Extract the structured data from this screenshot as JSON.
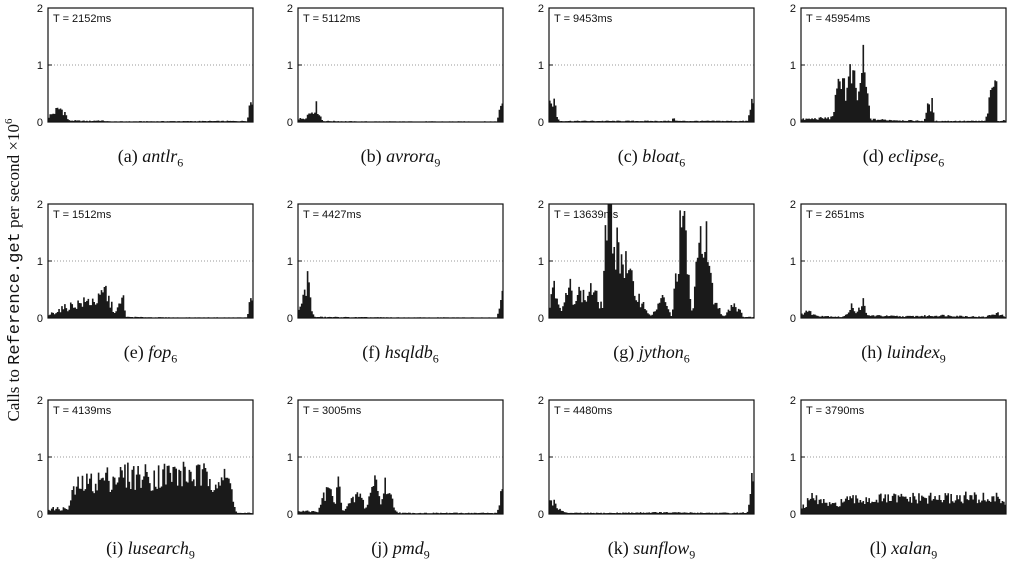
{
  "ylabel": {
    "prefix": "Calls to ",
    "code": "Reference.get",
    "suffix": " per second ×10",
    "exp": "6"
  },
  "chart_data": [
    {
      "type": "bar",
      "caption_prefix": "(a) ",
      "caption_name": "antlr",
      "caption_sub": "6",
      "time_label": "T = 2152ms",
      "ylim": [
        0,
        2
      ],
      "yticks": [
        "0",
        "1",
        "2"
      ],
      "grid": "dotted at 1",
      "profile": [
        [
          0,
          0.1
        ],
        [
          0.02,
          0.15
        ],
        [
          0.04,
          0.22
        ],
        [
          0.06,
          0.26
        ],
        [
          0.08,
          0.2
        ],
        [
          0.1,
          0.03
        ],
        [
          0.2,
          0.02
        ],
        [
          0.25,
          0.03
        ],
        [
          0.3,
          0.01
        ],
        [
          0.97,
          0.02
        ],
        [
          0.985,
          0.38
        ],
        [
          1,
          0.38
        ]
      ]
    },
    {
      "type": "bar",
      "caption_prefix": "(b) ",
      "caption_name": "avrora",
      "caption_sub": "9",
      "time_label": "T = 5112ms",
      "ylim": [
        0,
        2
      ],
      "yticks": [
        "0",
        "1",
        "2"
      ],
      "grid": "dotted at 1",
      "profile": [
        [
          0,
          0.05
        ],
        [
          0.03,
          0.08
        ],
        [
          0.05,
          0.15
        ],
        [
          0.07,
          0.22
        ],
        [
          0.09,
          0.3
        ],
        [
          0.1,
          0.2
        ],
        [
          0.12,
          0.02
        ],
        [
          0.3,
          0.01
        ],
        [
          0.97,
          0.01
        ],
        [
          0.99,
          0.38
        ],
        [
          1,
          0.38
        ]
      ]
    },
    {
      "type": "bar",
      "caption_prefix": "(c) ",
      "caption_name": "bloat",
      "caption_sub": "6",
      "time_label": "T = 9453ms",
      "ylim": [
        0,
        2
      ],
      "yticks": [
        "0",
        "1",
        "2"
      ],
      "grid": "dotted at 1",
      "profile": [
        [
          0,
          0.35
        ],
        [
          0.02,
          0.42
        ],
        [
          0.03,
          0.35
        ],
        [
          0.04,
          0.1
        ],
        [
          0.05,
          0.02
        ],
        [
          0.3,
          0.02
        ],
        [
          0.6,
          0.02
        ],
        [
          0.61,
          0.1
        ],
        [
          0.62,
          0.02
        ],
        [
          0.97,
          0.02
        ],
        [
          0.99,
          0.4
        ],
        [
          1,
          0.4
        ]
      ]
    },
    {
      "type": "bar",
      "caption_prefix": "(d) ",
      "caption_name": "eclipse",
      "caption_sub": "6",
      "time_label": "T = 45954ms",
      "ylim": [
        0,
        2
      ],
      "yticks": [
        "0",
        "1",
        "2"
      ],
      "grid": "dotted at 1",
      "profile": [
        [
          0,
          0.05
        ],
        [
          0.15,
          0.08
        ],
        [
          0.18,
          0.6
        ],
        [
          0.2,
          1.05
        ],
        [
          0.22,
          0.5
        ],
        [
          0.24,
          0.9
        ],
        [
          0.26,
          0.75
        ],
        [
          0.28,
          0.4
        ],
        [
          0.3,
          1.2
        ],
        [
          0.32,
          0.6
        ],
        [
          0.34,
          0.05
        ],
        [
          0.6,
          0.02
        ],
        [
          0.62,
          0.3
        ],
        [
          0.64,
          0.35
        ],
        [
          0.65,
          0.02
        ],
        [
          0.9,
          0.02
        ],
        [
          0.95,
          0.95
        ],
        [
          0.96,
          0.02
        ],
        [
          1,
          0.04
        ]
      ]
    },
    {
      "type": "bar",
      "caption_prefix": "(e) ",
      "caption_name": "fop",
      "caption_sub": "6",
      "time_label": "T = 1512ms",
      "ylim": [
        0,
        2
      ],
      "yticks": [
        "0",
        "1",
        "2"
      ],
      "grid": "dotted at 1",
      "profile": [
        [
          0,
          0.05
        ],
        [
          0.05,
          0.15
        ],
        [
          0.1,
          0.22
        ],
        [
          0.15,
          0.28
        ],
        [
          0.2,
          0.32
        ],
        [
          0.25,
          0.35
        ],
        [
          0.28,
          0.55
        ],
        [
          0.3,
          0.3
        ],
        [
          0.33,
          0.1
        ],
        [
          0.37,
          0.4
        ],
        [
          0.38,
          0.02
        ],
        [
          0.6,
          0.01
        ],
        [
          0.97,
          0.01
        ],
        [
          0.99,
          0.4
        ],
        [
          1,
          0.4
        ]
      ]
    },
    {
      "type": "bar",
      "caption_prefix": "(f) ",
      "caption_name": "hsqldb",
      "caption_sub": "6",
      "time_label": "T = 4427ms",
      "ylim": [
        0,
        2
      ],
      "yticks": [
        "0",
        "1",
        "2"
      ],
      "grid": "dotted at 1",
      "profile": [
        [
          0,
          0.1
        ],
        [
          0.02,
          0.3
        ],
        [
          0.04,
          0.6
        ],
        [
          0.05,
          0.8
        ],
        [
          0.06,
          0.5
        ],
        [
          0.07,
          0.1
        ],
        [
          0.08,
          0.02
        ],
        [
          0.5,
          0.01
        ],
        [
          0.97,
          0.01
        ],
        [
          0.99,
          0.42
        ],
        [
          1,
          0.42
        ]
      ]
    },
    {
      "type": "bar",
      "caption_prefix": "(g) ",
      "caption_name": "jython",
      "caption_sub": "6",
      "time_label": "T = 13639ms",
      "ylim": [
        0,
        2
      ],
      "yticks": [
        "0",
        "1",
        "2"
      ],
      "grid": "dotted at 1",
      "profile": [
        [
          0,
          0.1
        ],
        [
          0.02,
          0.8
        ],
        [
          0.04,
          0.5
        ],
        [
          0.06,
          0.1
        ],
        [
          0.1,
          0.6
        ],
        [
          0.12,
          0.4
        ],
        [
          0.15,
          0.5
        ],
        [
          0.18,
          0.35
        ],
        [
          0.2,
          0.6
        ],
        [
          0.23,
          0.4
        ],
        [
          0.26,
          0.2
        ],
        [
          0.28,
          2.0
        ],
        [
          0.42,
          0.5
        ],
        [
          0.5,
          0.02
        ],
        [
          0.55,
          0.4
        ],
        [
          0.6,
          0.02
        ],
        [
          0.65,
          2.0
        ],
        [
          0.7,
          0.02
        ],
        [
          0.72,
          0.9
        ],
        [
          0.75,
          2.0
        ],
        [
          0.8,
          0.4
        ],
        [
          0.85,
          0.02
        ],
        [
          0.9,
          0.3
        ],
        [
          0.95,
          0.02
        ],
        [
          1,
          0.02
        ]
      ]
    },
    {
      "type": "bar",
      "caption_prefix": "(h) ",
      "caption_name": "luindex",
      "caption_sub": "9",
      "time_label": "T = 2651ms",
      "ylim": [
        0,
        2
      ],
      "yticks": [
        "0",
        "1",
        "2"
      ],
      "grid": "dotted at 1",
      "profile": [
        [
          0,
          0.05
        ],
        [
          0.02,
          0.15
        ],
        [
          0.05,
          0.1
        ],
        [
          0.07,
          0.05
        ],
        [
          0.2,
          0.02
        ],
        [
          0.22,
          0.05
        ],
        [
          0.25,
          0.3
        ],
        [
          0.27,
          0.05
        ],
        [
          0.3,
          0.35
        ],
        [
          0.32,
          0.05
        ],
        [
          0.5,
          0.03
        ],
        [
          0.7,
          0.05
        ],
        [
          0.9,
          0.02
        ],
        [
          0.95,
          0.1
        ],
        [
          1,
          0.02
        ]
      ]
    },
    {
      "type": "bar",
      "caption_prefix": "(i) ",
      "caption_name": "lusearch",
      "caption_sub": "9",
      "time_label": "T = 4139ms",
      "ylim": [
        0,
        2
      ],
      "yticks": [
        "0",
        "1",
        "2"
      ],
      "grid": "dotted at 1",
      "profile": [
        [
          0,
          0.1
        ],
        [
          0.1,
          0.1
        ],
        [
          0.12,
          0.4
        ],
        [
          0.15,
          0.55
        ],
        [
          0.2,
          0.6
        ],
        [
          0.3,
          0.7
        ],
        [
          0.4,
          0.75
        ],
        [
          0.5,
          0.72
        ],
        [
          0.6,
          0.78
        ],
        [
          0.7,
          0.75
        ],
        [
          0.8,
          0.7
        ],
        [
          0.88,
          0.65
        ],
        [
          0.9,
          0.4
        ],
        [
          0.92,
          0.02
        ],
        [
          1,
          0.02
        ]
      ]
    },
    {
      "type": "bar",
      "caption_prefix": "(j) ",
      "caption_name": "pmd",
      "caption_sub": "9",
      "time_label": "T = 3005ms",
      "ylim": [
        0,
        2
      ],
      "yticks": [
        "0",
        "1",
        "2"
      ],
      "grid": "dotted at 1",
      "profile": [
        [
          0,
          0.05
        ],
        [
          0.1,
          0.05
        ],
        [
          0.12,
          0.3
        ],
        [
          0.15,
          0.5
        ],
        [
          0.18,
          0.2
        ],
        [
          0.2,
          0.65
        ],
        [
          0.22,
          0.05
        ],
        [
          0.3,
          0.4
        ],
        [
          0.33,
          0.1
        ],
        [
          0.38,
          0.75
        ],
        [
          0.4,
          0.2
        ],
        [
          0.43,
          0.6
        ],
        [
          0.45,
          0.35
        ],
        [
          0.48,
          0.05
        ],
        [
          0.5,
          0.02
        ],
        [
          0.97,
          0.02
        ],
        [
          0.99,
          0.38
        ],
        [
          1,
          0.38
        ]
      ]
    },
    {
      "type": "bar",
      "caption_prefix": "(k) ",
      "caption_name": "sunflow",
      "caption_sub": "9",
      "time_label": "T = 4480ms",
      "ylim": [
        0,
        2
      ],
      "yticks": [
        "0",
        "1",
        "2"
      ],
      "grid": "dotted at 1",
      "profile": [
        [
          0,
          0.3
        ],
        [
          0.02,
          0.25
        ],
        [
          0.04,
          0.15
        ],
        [
          0.06,
          0.05
        ],
        [
          0.1,
          0.02
        ],
        [
          0.3,
          0.02
        ],
        [
          0.5,
          0.03
        ],
        [
          0.9,
          0.02
        ],
        [
          0.97,
          0.03
        ],
        [
          0.99,
          0.6
        ],
        [
          1,
          0.6
        ]
      ]
    },
    {
      "type": "bar",
      "caption_prefix": "(l) ",
      "caption_name": "xalan",
      "caption_sub": "9",
      "time_label": "T = 3790ms",
      "ylim": [
        0,
        2
      ],
      "yticks": [
        "0",
        "1",
        "2"
      ],
      "grid": "dotted at 1",
      "profile": [
        [
          0,
          0.1
        ],
        [
          0.05,
          0.3
        ],
        [
          0.1,
          0.25
        ],
        [
          0.15,
          0.15
        ],
        [
          0.2,
          0.25
        ],
        [
          0.3,
          0.28
        ],
        [
          0.5,
          0.3
        ],
        [
          0.7,
          0.3
        ],
        [
          0.8,
          0.32
        ],
        [
          0.9,
          0.3
        ],
        [
          0.98,
          0.3
        ],
        [
          1,
          0.2
        ]
      ]
    }
  ]
}
